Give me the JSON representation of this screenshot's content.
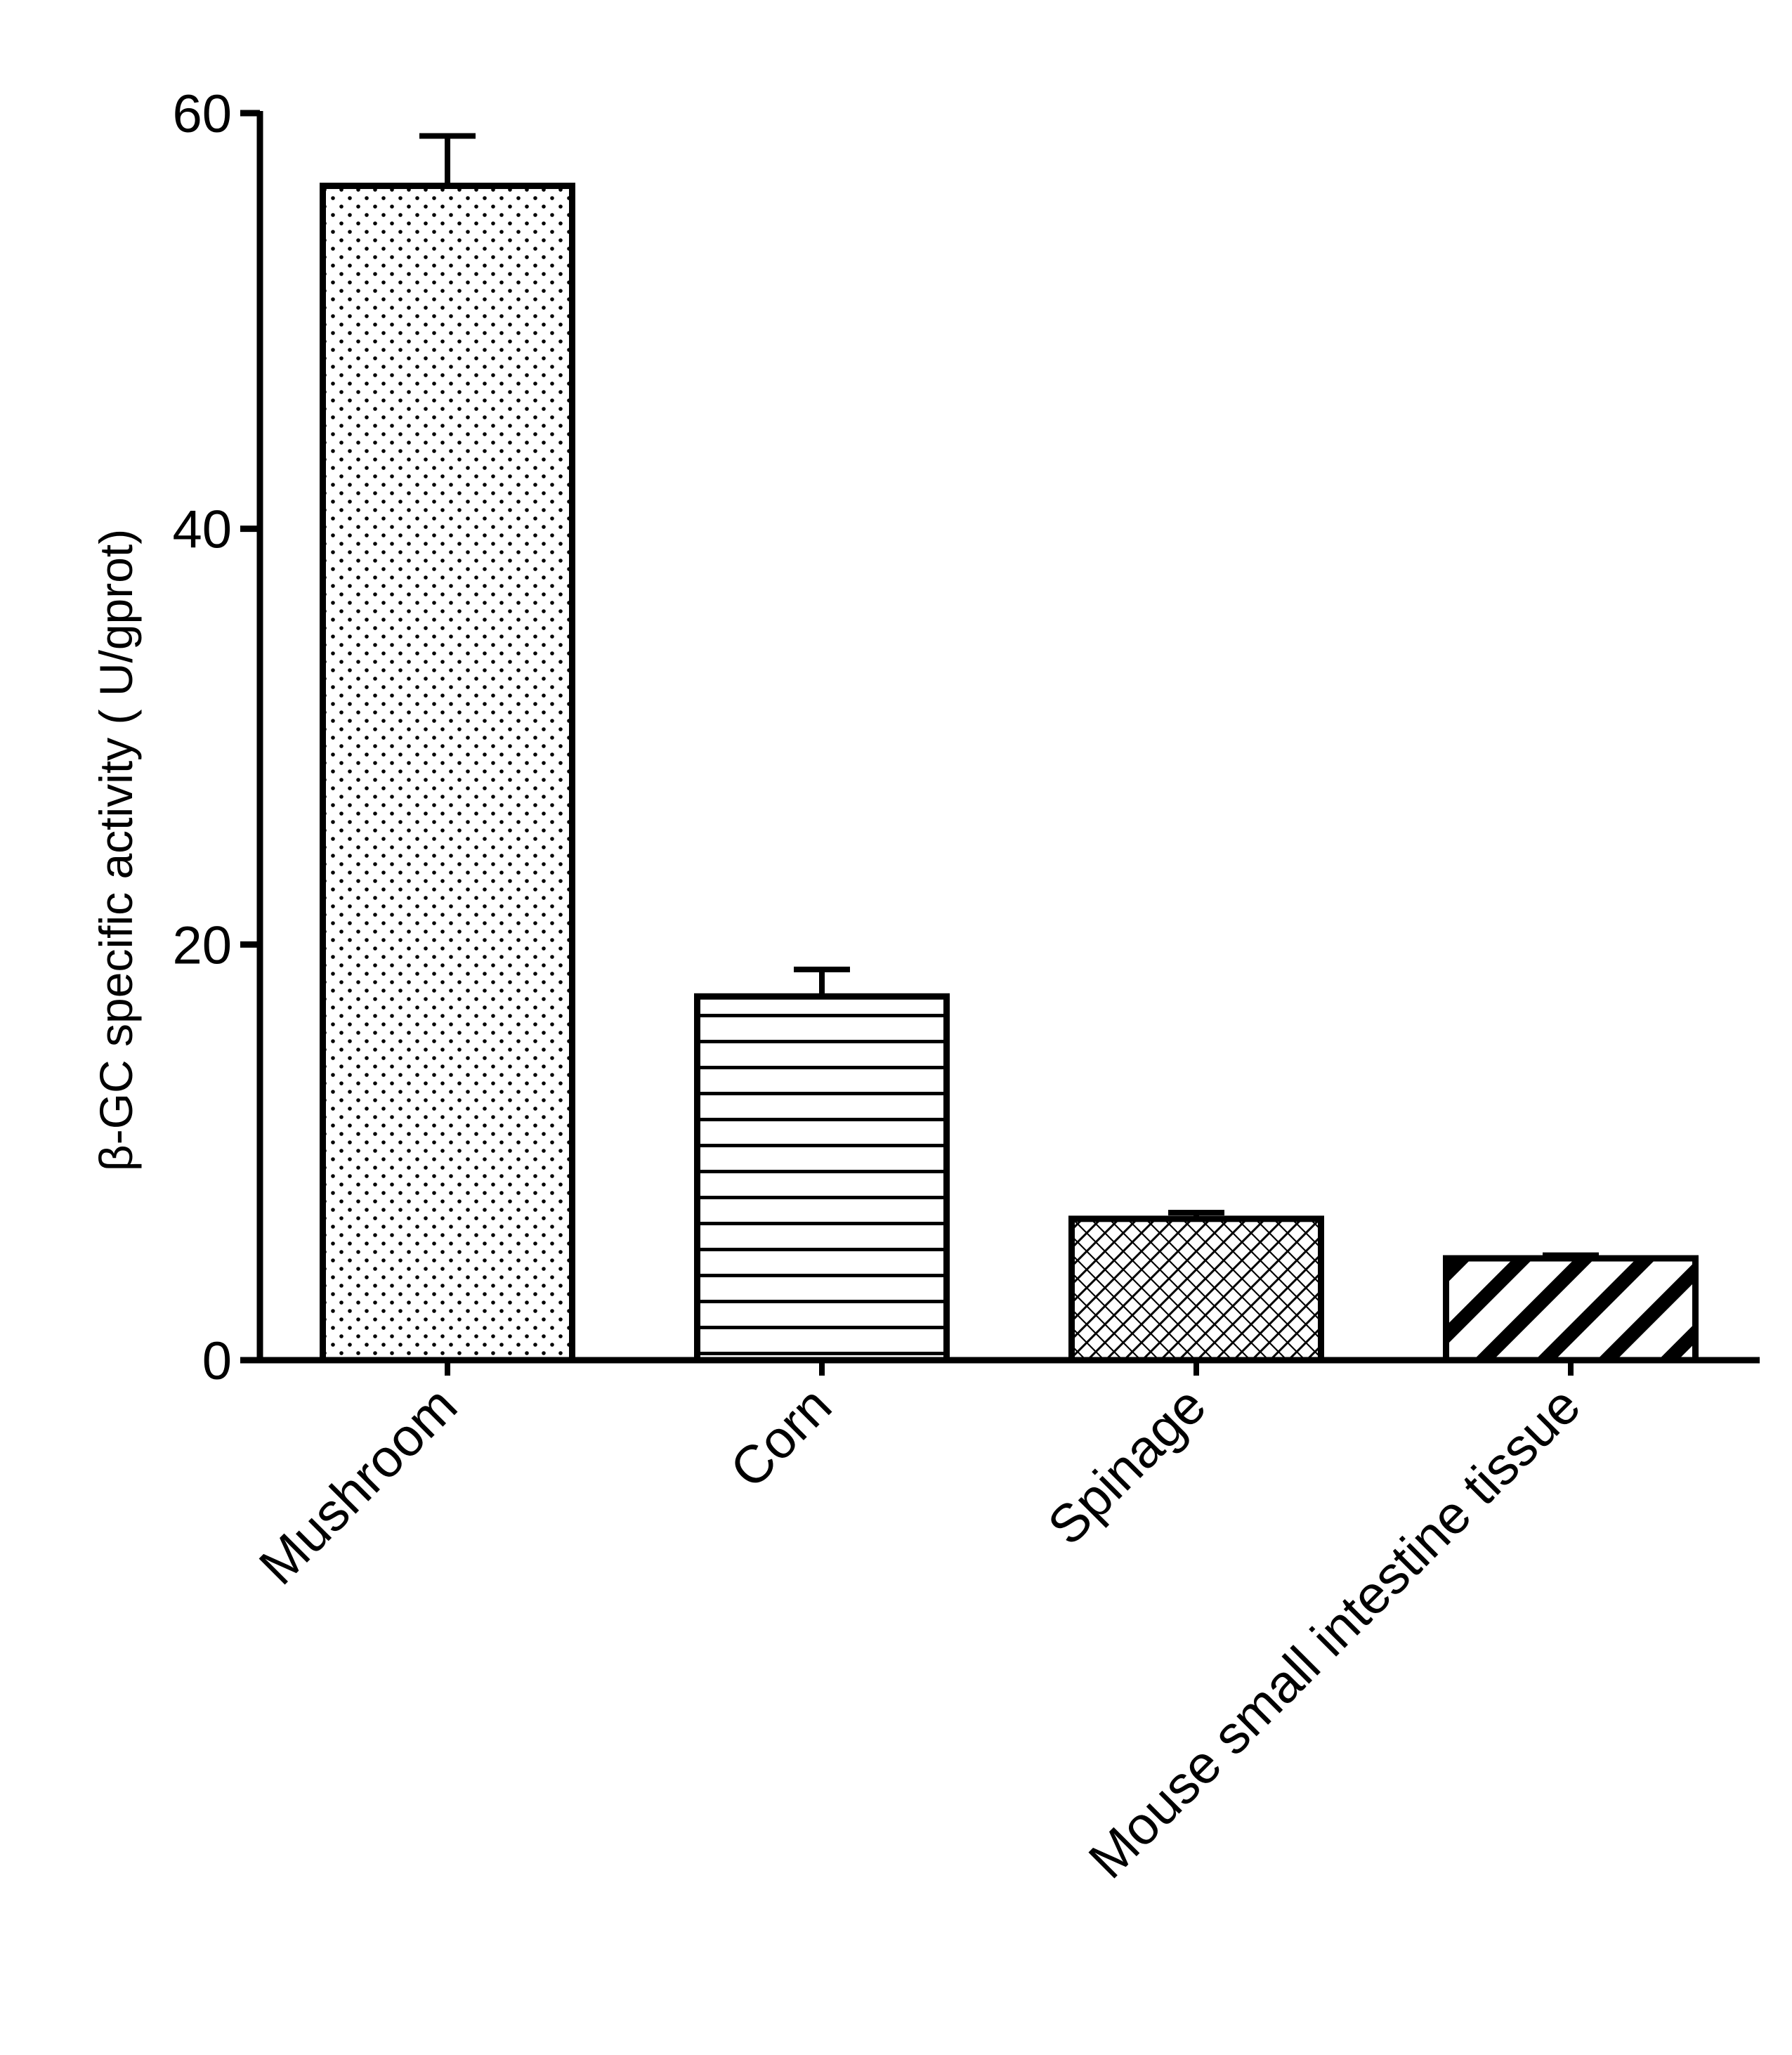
{
  "chart_data": {
    "type": "bar",
    "title": "",
    "xlabel": "",
    "ylabel": "β-GC specific activity ( U/gprot)",
    "ylim": [
      0,
      60
    ],
    "yticks": [
      "0",
      "20",
      "40",
      "60"
    ],
    "ytick_values": [
      0,
      20,
      40,
      60
    ],
    "grid": false,
    "legend": "none",
    "categories": [
      "Mushroom",
      "Corn",
      "Spinage",
      "Mouse small intestine tissue"
    ],
    "values": [
      56.5,
      17.5,
      6.8,
      4.9
    ],
    "errors": [
      2.4,
      1.3,
      0.3,
      0.15
    ],
    "patterns": [
      "dots",
      "horizontal-lines",
      "crosshatch",
      "diagonal-stripes"
    ],
    "colors": {
      "stroke": "#000000",
      "fill": "#ffffff"
    }
  }
}
